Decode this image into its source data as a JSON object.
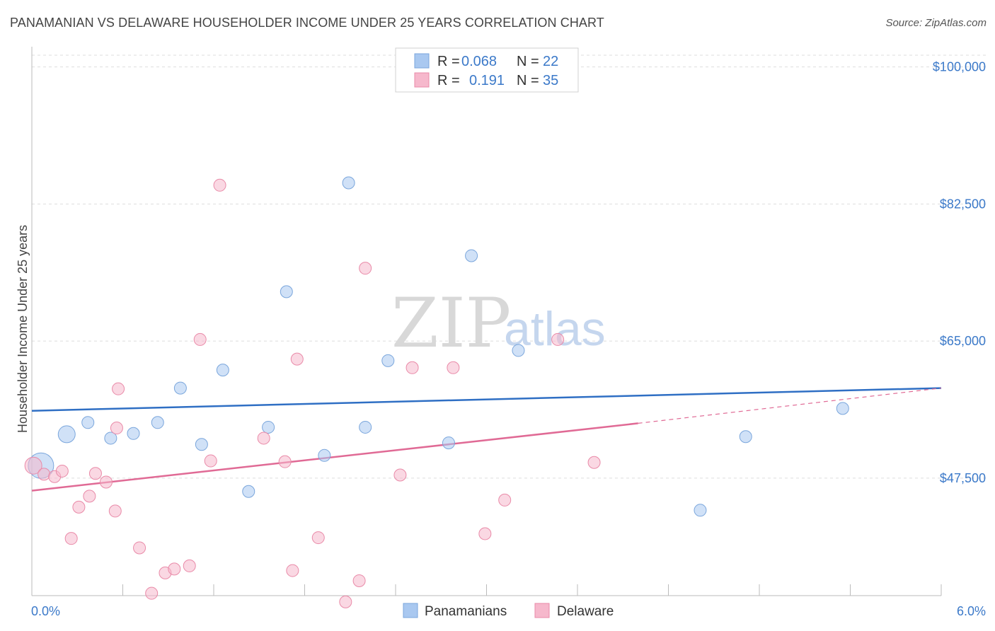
{
  "title": "PANAMANIAN VS DELAWARE HOUSEHOLDER INCOME UNDER 25 YEARS CORRELATION CHART",
  "source": "Source: ZipAtlas.com",
  "watermark": {
    "part1": "ZIP",
    "part2": "atlas"
  },
  "legend": {
    "rows": [
      {
        "r_label": "R = ",
        "r_value": "0.068",
        "n_label": "N = ",
        "n_value": "22",
        "color": "#a9c8f0"
      },
      {
        "r_label": "R = ",
        "r_value": "0.191",
        "n_label": "N = ",
        "n_value": "35",
        "color": "#f6b8cc"
      }
    ]
  },
  "bottom_legend": [
    {
      "label": "Panamanians",
      "color": "#a9c8f0"
    },
    {
      "label": "Delaware",
      "color": "#f6b8cc"
    }
  ],
  "chart_data": {
    "type": "scatter",
    "ylabel": "Householder Income Under 25 years",
    "xlim": [
      0,
      6.0
    ],
    "ylim": [
      32500,
      101500
    ],
    "x_tick_labels": [
      {
        "value": 0,
        "label": "0.0%"
      },
      {
        "value": 6.0,
        "label": "6.0%"
      }
    ],
    "y_ticks": [
      {
        "value": 47500,
        "label": "$47,500"
      },
      {
        "value": 65000,
        "label": "$65,000"
      },
      {
        "value": 82500,
        "label": "$82,500"
      },
      {
        "value": 100000,
        "label": "$100,000"
      }
    ],
    "grid": true,
    "legend_position": "top-center",
    "series": [
      {
        "name": "Panamanians",
        "color": "#a9c8f0",
        "stroke": "#7aa6dc",
        "trend_color": "#2f6fc4",
        "trend": {
          "x": [
            0,
            6.0
          ],
          "y": [
            56100,
            59000
          ]
        },
        "points": [
          {
            "x": 0.06,
            "y": 49100,
            "big": 2
          },
          {
            "x": 0.23,
            "y": 53100,
            "big": 1
          },
          {
            "x": 0.37,
            "y": 54600
          },
          {
            "x": 0.52,
            "y": 52600
          },
          {
            "x": 0.67,
            "y": 53200
          },
          {
            "x": 0.83,
            "y": 54600
          },
          {
            "x": 0.98,
            "y": 59000
          },
          {
            "x": 1.12,
            "y": 51800
          },
          {
            "x": 1.26,
            "y": 61300
          },
          {
            "x": 1.43,
            "y": 45800
          },
          {
            "x": 1.56,
            "y": 54000
          },
          {
            "x": 1.68,
            "y": 71300
          },
          {
            "x": 1.93,
            "y": 50400
          },
          {
            "x": 2.09,
            "y": 85200
          },
          {
            "x": 2.2,
            "y": 54000
          },
          {
            "x": 2.35,
            "y": 62500
          },
          {
            "x": 2.75,
            "y": 52000
          },
          {
            "x": 2.9,
            "y": 75900
          },
          {
            "x": 3.21,
            "y": 63800
          },
          {
            "x": 4.41,
            "y": 43400
          },
          {
            "x": 4.71,
            "y": 52800
          },
          {
            "x": 5.35,
            "y": 56400
          }
        ]
      },
      {
        "name": "Delaware",
        "color": "#f6b8cc",
        "stroke": "#e98aa8",
        "trend_color": "#e06a95",
        "trend": {
          "x": [
            0,
            4.0
          ],
          "y": [
            45900,
            54500
          ]
        },
        "trend_dashed": {
          "x": [
            4.0,
            6.0
          ],
          "y": [
            54500,
            59000
          ]
        },
        "points": [
          {
            "x": 0.01,
            "y": 49100,
            "big": 1
          },
          {
            "x": 0.08,
            "y": 48000
          },
          {
            "x": 0.15,
            "y": 47700
          },
          {
            "x": 0.2,
            "y": 48400
          },
          {
            "x": 0.26,
            "y": 39800
          },
          {
            "x": 0.31,
            "y": 43800
          },
          {
            "x": 0.38,
            "y": 45200
          },
          {
            "x": 0.42,
            "y": 48100
          },
          {
            "x": 0.49,
            "y": 47000
          },
          {
            "x": 0.55,
            "y": 43300
          },
          {
            "x": 0.57,
            "y": 58900
          },
          {
            "x": 0.56,
            "y": 53900
          },
          {
            "x": 0.71,
            "y": 38600
          },
          {
            "x": 0.79,
            "y": 32800
          },
          {
            "x": 0.88,
            "y": 35400
          },
          {
            "x": 0.94,
            "y": 35900
          },
          {
            "x": 1.04,
            "y": 36300
          },
          {
            "x": 1.11,
            "y": 65200
          },
          {
            "x": 1.18,
            "y": 49700
          },
          {
            "x": 1.24,
            "y": 84900
          },
          {
            "x": 1.53,
            "y": 52600
          },
          {
            "x": 1.67,
            "y": 49600
          },
          {
            "x": 1.72,
            "y": 35700
          },
          {
            "x": 1.75,
            "y": 62700
          },
          {
            "x": 1.89,
            "y": 39900
          },
          {
            "x": 2.07,
            "y": 31700
          },
          {
            "x": 2.16,
            "y": 34400
          },
          {
            "x": 2.2,
            "y": 74300
          },
          {
            "x": 2.43,
            "y": 47900
          },
          {
            "x": 2.51,
            "y": 61600
          },
          {
            "x": 2.78,
            "y": 61600
          },
          {
            "x": 2.99,
            "y": 40400
          },
          {
            "x": 3.12,
            "y": 44700
          },
          {
            "x": 3.47,
            "y": 65200
          },
          {
            "x": 3.71,
            "y": 49500
          }
        ]
      }
    ]
  }
}
